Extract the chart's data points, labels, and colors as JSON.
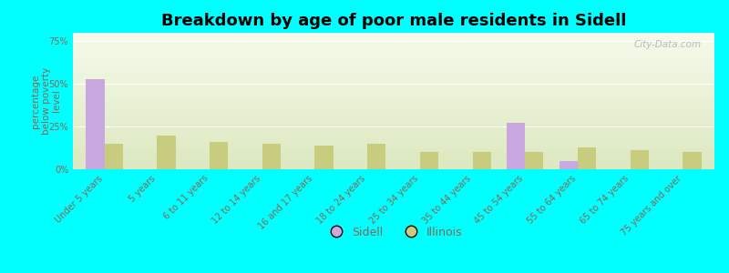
{
  "title": "Breakdown by age of poor male residents in Sidell",
  "ylabel": "percentage\nbelow poverty\nlevel",
  "categories": [
    "Under 5 years",
    "5 years",
    "6 to 11 years",
    "12 to 14 years",
    "16 and 17 years",
    "18 to 24 years",
    "25 to 34 years",
    "35 to 44 years",
    "45 to 54 years",
    "55 to 64 years",
    "65 to 74 years",
    "75 years and over"
  ],
  "sidell_values": [
    53,
    0,
    0,
    0,
    0,
    0,
    0,
    0,
    27,
    5,
    0,
    0
  ],
  "illinois_values": [
    15,
    20,
    16,
    15,
    14,
    15,
    10,
    10,
    10,
    13,
    11,
    10
  ],
  "sidell_color": "#c9a8e0",
  "illinois_color": "#c8cc7e",
  "background_color": "#00ffff",
  "plot_bg_top": "#dce8c0",
  "plot_bg_bottom": "#f5faea",
  "bar_width": 0.35,
  "ylim": [
    0,
    80
  ],
  "yticks": [
    0,
    25,
    50,
    75
  ],
  "ytick_labels": [
    "0%",
    "25%",
    "50%",
    "75%"
  ],
  "title_fontsize": 13,
  "axis_label_fontsize": 7.5,
  "tick_label_fontsize": 7,
  "tick_color": "#886655",
  "legend_fontsize": 9,
  "watermark": "City-Data.com"
}
